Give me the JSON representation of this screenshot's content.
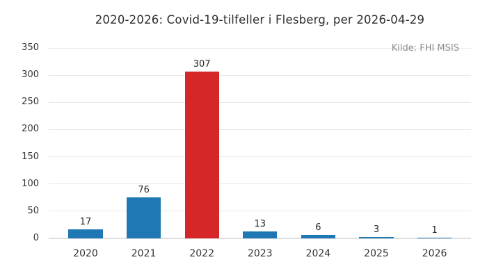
{
  "title": "2020-2026: Covid-19-tilfeller i Flesberg, per 2026-04-29",
  "source_note": "Kilde: FHI MSIS",
  "colors": {
    "bar_default": "#1f77b4",
    "bar_highlight": "#d62728",
    "grid": "#e8e8e8",
    "zero_line": "#dfdfdf",
    "text": "#333333",
    "muted_text": "#8c8c8c"
  },
  "chart_data": {
    "type": "bar",
    "title": "2020-2026: Covid-19-tilfeller i Flesberg, per 2026-04-29",
    "categories": [
      "2020",
      "2021",
      "2022",
      "2023",
      "2024",
      "2025",
      "2026"
    ],
    "values": [
      17,
      76,
      307,
      13,
      6,
      3,
      1
    ],
    "bar_colors": [
      "#1f77b4",
      "#1f77b4",
      "#d62728",
      "#1f77b4",
      "#1f77b4",
      "#1f77b4",
      "#1f77b4"
    ],
    "highlight_index": 2,
    "value_labels": [
      17,
      76,
      307,
      13,
      6,
      3,
      1
    ],
    "xlabel": "",
    "ylabel": "",
    "ylim": [
      0,
      350
    ],
    "yticks": [
      0,
      50,
      100,
      150,
      200,
      250,
      300,
      350
    ],
    "grid": "horizontal",
    "legend": "none",
    "annotations": [
      "Kilde: FHI MSIS"
    ]
  }
}
